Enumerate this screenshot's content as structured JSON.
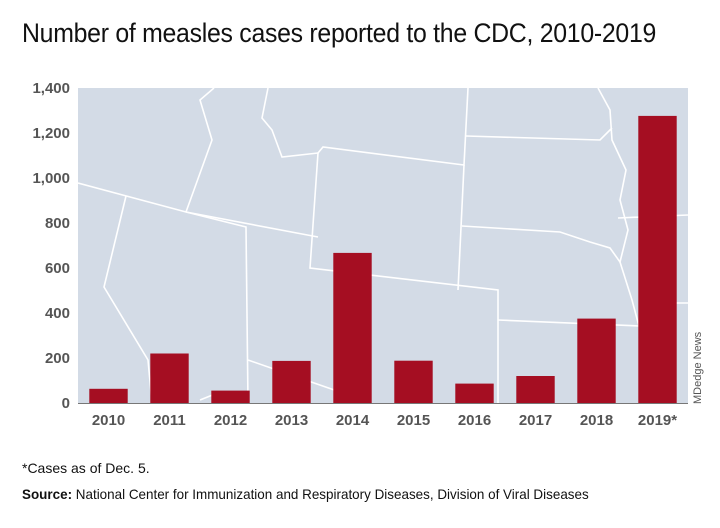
{
  "chart_data": {
    "type": "bar",
    "title": "Number of measles cases reported to the CDC, 2010-2019",
    "categories": [
      "2010",
      "2011",
      "2012",
      "2013",
      "2014",
      "2015",
      "2016",
      "2017",
      "2018",
      "2019*"
    ],
    "values": [
      63,
      220,
      55,
      187,
      667,
      188,
      86,
      120,
      375,
      1276
    ],
    "ylim": [
      0,
      1400
    ],
    "yticks": [
      "0",
      "200",
      "400",
      "600",
      "800",
      "1,000",
      "1,200",
      "1,400"
    ],
    "xlabel": "",
    "ylabel": "",
    "bar_color": "#a50e22",
    "background_color": "#d3dbe6",
    "grid": false
  },
  "footnote": "*Cases as of Dec. 5.",
  "source_label": "Source:",
  "source_text": " National Center for Immunization and Respiratory Diseases, Division of Viral Diseases",
  "credit": "MDedge News"
}
